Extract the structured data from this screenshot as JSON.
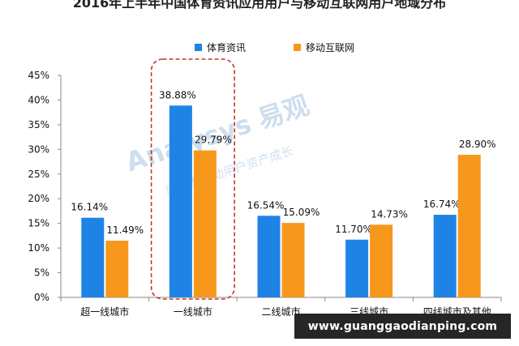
{
  "title": "2016年上半年中国体育资讯应用用户与移动互联网用户地域分布",
  "legend": {
    "items": [
      {
        "label": "体育资讯",
        "color": "#1f83e6"
      },
      {
        "label": "移动互联网",
        "color": "#f7981d"
      }
    ],
    "placement": "top-center"
  },
  "watermark": {
    "logo": "Analysys 易观",
    "tagline": "用数据驱动用户资产成长",
    "site": "www.guanggaodianping.com"
  },
  "highlight": {
    "category": "一线城市",
    "style": "red dashed rounded box",
    "color": "#c0392b"
  },
  "chart_data": {
    "type": "bar",
    "title": "2016年上半年中国体育资讯应用用户与移动互联网用户地域分布",
    "xlabel": "",
    "ylabel": "",
    "ylim": [
      0,
      45
    ],
    "yticks": [
      "0%",
      "5%",
      "10%",
      "15%",
      "20%",
      "25%",
      "30%",
      "35%",
      "40%",
      "45%"
    ],
    "grid": false,
    "categories": [
      "超一线城市",
      "一线城市",
      "二线城市",
      "三线城市",
      "四线城市及其他"
    ],
    "series": [
      {
        "name": "体育资讯",
        "color": "#1f83e6",
        "values": [
          16.14,
          38.88,
          16.54,
          11.7,
          16.74
        ],
        "labels": [
          "16.14%",
          "38.88%",
          "16.54%",
          "11.70%",
          "16.74%"
        ]
      },
      {
        "name": "移动互联网",
        "color": "#f7981d",
        "values": [
          11.49,
          29.79,
          15.09,
          14.73,
          28.9
        ],
        "labels": [
          "11.49%",
          "29.79%",
          "15.09%",
          "14.73%",
          "28.90%"
        ]
      }
    ]
  }
}
